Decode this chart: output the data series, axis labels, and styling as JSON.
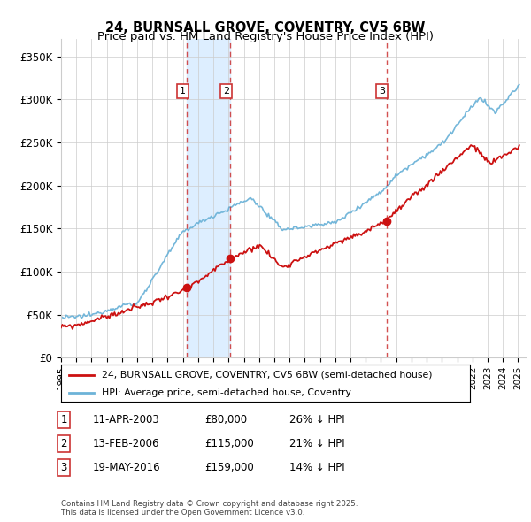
{
  "title": "24, BURNSALL GROVE, COVENTRY, CV5 6BW",
  "subtitle": "Price paid vs. HM Land Registry's House Price Index (HPI)",
  "ylim": [
    0,
    370000
  ],
  "yticks": [
    0,
    50000,
    100000,
    150000,
    200000,
    250000,
    300000,
    350000
  ],
  "ytick_labels": [
    "£0",
    "£50K",
    "£100K",
    "£150K",
    "£200K",
    "£250K",
    "£300K",
    "£350K"
  ],
  "hpi_color": "#6db3d8",
  "price_color": "#cc1111",
  "vline_color": "#cc3333",
  "shade_color": "#ddeeff",
  "grid_color": "#cccccc",
  "bg_color": "#ffffff",
  "legend_label_price": "24, BURNSALL GROVE, COVENTRY, CV5 6BW (semi-detached house)",
  "legend_label_hpi": "HPI: Average price, semi-detached house, Coventry",
  "transactions": [
    {
      "label": "1",
      "date_num": 2003.27,
      "price": 80000,
      "text": "11-APR-2003",
      "pct": "26% ↓ HPI"
    },
    {
      "label": "2",
      "date_num": 2006.12,
      "price": 115000,
      "text": "13-FEB-2006",
      "pct": "21% ↓ HPI"
    },
    {
      "label": "3",
      "date_num": 2016.38,
      "price": 159000,
      "text": "19-MAY-2016",
      "pct": "14% ↓ HPI"
    }
  ],
  "footer": "Contains HM Land Registry data © Crown copyright and database right 2025.\nThis data is licensed under the Open Government Licence v3.0."
}
